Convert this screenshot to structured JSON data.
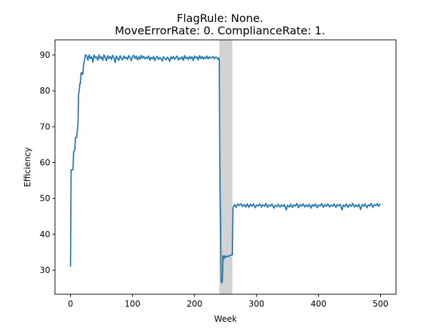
{
  "chart_data": {
    "type": "line",
    "title_lines": [
      "FlagRule: None.",
      "MoveErrorRate: 0. ComplianceRate: 1."
    ],
    "xlabel": "Week",
    "ylabel": "Efficiency",
    "xlim": [
      -25,
      525
    ],
    "ylim": [
      23.3,
      94.2
    ],
    "xticks": [
      0,
      100,
      200,
      300,
      400,
      500
    ],
    "yticks": [
      30,
      40,
      50,
      60,
      70,
      80,
      90
    ],
    "shaded_region": {
      "x_start": 240,
      "x_end": 261,
      "color": "#d3d3d3"
    },
    "line_color": "#1f77b4",
    "grid": false,
    "series": [
      {
        "points": [
          [
            0,
            31
          ],
          [
            1,
            58
          ],
          [
            3,
            58
          ],
          [
            4,
            58
          ],
          [
            5,
            63
          ],
          [
            7,
            63.5
          ],
          [
            8,
            67
          ],
          [
            10,
            67
          ],
          [
            11,
            69
          ],
          [
            12,
            70.5
          ],
          [
            13,
            79
          ],
          [
            14,
            80
          ],
          [
            15,
            82
          ],
          [
            16,
            82
          ],
          [
            17,
            85
          ],
          [
            18,
            84.5
          ],
          [
            19,
            85
          ],
          [
            20,
            84.7
          ],
          [
            21,
            87
          ],
          [
            22,
            88
          ],
          [
            24,
            90
          ],
          [
            26,
            89.8
          ],
          [
            28,
            88.5
          ],
          [
            30,
            90
          ],
          [
            32,
            89
          ],
          [
            34,
            89.5
          ],
          [
            36,
            88
          ],
          [
            38,
            90
          ],
          [
            40,
            89.2
          ],
          [
            42,
            89.5
          ],
          [
            44,
            88.5
          ],
          [
            46,
            90
          ],
          [
            48,
            89
          ],
          [
            50,
            89.5
          ],
          [
            52,
            88.5
          ],
          [
            54,
            90
          ],
          [
            56,
            89.3
          ],
          [
            58,
            88.4
          ],
          [
            60,
            89.8
          ],
          [
            62,
            89
          ],
          [
            64,
            89.6
          ],
          [
            66,
            88.7
          ],
          [
            68,
            89.9
          ],
          [
            70,
            89.2
          ],
          [
            72,
            87.9
          ],
          [
            74,
            89.7
          ],
          [
            76,
            89
          ],
          [
            78,
            88.5
          ],
          [
            80,
            89.8
          ],
          [
            82,
            89.1
          ],
          [
            84,
            88.6
          ],
          [
            86,
            89.7
          ],
          [
            88,
            89
          ],
          [
            90,
            89.4
          ],
          [
            92,
            88.7
          ],
          [
            94,
            89.8
          ],
          [
            96,
            89.3
          ],
          [
            98,
            88.4
          ],
          [
            100,
            89.6
          ],
          [
            102,
            89.9
          ],
          [
            104,
            89
          ],
          [
            106,
            89.7
          ],
          [
            108,
            88.6
          ],
          [
            110,
            89.5
          ],
          [
            112,
            88.8
          ],
          [
            114,
            89.9
          ],
          [
            116,
            89.1
          ],
          [
            118,
            89.6
          ],
          [
            120,
            88.9
          ],
          [
            122,
            89.4
          ],
          [
            124,
            89
          ],
          [
            126,
            89.7
          ],
          [
            128,
            88.5
          ],
          [
            130,
            89.3
          ],
          [
            132,
            88.9
          ],
          [
            134,
            89.6
          ],
          [
            136,
            88.4
          ],
          [
            138,
            89.2
          ],
          [
            140,
            89.6
          ],
          [
            142,
            88.7
          ],
          [
            144,
            89.3
          ],
          [
            146,
            89
          ],
          [
            148,
            88.3
          ],
          [
            150,
            89.5
          ],
          [
            152,
            89
          ],
          [
            154,
            88.6
          ],
          [
            156,
            89.4
          ],
          [
            158,
            89
          ],
          [
            160,
            88.2
          ],
          [
            162,
            89.5
          ],
          [
            164,
            88.9
          ],
          [
            166,
            89.6
          ],
          [
            168,
            88.8
          ],
          [
            170,
            89.3
          ],
          [
            172,
            89.7
          ],
          [
            174,
            88.6
          ],
          [
            176,
            89.2
          ],
          [
            178,
            88.9
          ],
          [
            180,
            89.5
          ],
          [
            182,
            88.5
          ],
          [
            184,
            89.8
          ],
          [
            186,
            89
          ],
          [
            188,
            89.4
          ],
          [
            190,
            88.7
          ],
          [
            192,
            89.6
          ],
          [
            194,
            89
          ],
          [
            196,
            89.5
          ],
          [
            198,
            88.4
          ],
          [
            200,
            89.7
          ],
          [
            202,
            89.1
          ],
          [
            204,
            89.5
          ],
          [
            206,
            88.6
          ],
          [
            208,
            89.8
          ],
          [
            210,
            89
          ],
          [
            212,
            89.6
          ],
          [
            214,
            88.8
          ],
          [
            216,
            89.4
          ],
          [
            218,
            89
          ],
          [
            220,
            89.7
          ],
          [
            222,
            88.9
          ],
          [
            224,
            89.5
          ],
          [
            226,
            89.1
          ],
          [
            228,
            89.3
          ],
          [
            230,
            89.6
          ],
          [
            232,
            88.9
          ],
          [
            234,
            89.4
          ],
          [
            236,
            89.3
          ],
          [
            238,
            88.8
          ],
          [
            239,
            89.2
          ],
          [
            240,
            88.5
          ],
          [
            241,
            56
          ],
          [
            242,
            44
          ],
          [
            243,
            27
          ],
          [
            244,
            26.5
          ],
          [
            245,
            27
          ],
          [
            246,
            34
          ],
          [
            247,
            33
          ],
          [
            248,
            34
          ],
          [
            250,
            33.5
          ],
          [
            252,
            34
          ],
          [
            254,
            33.8
          ],
          [
            256,
            34
          ],
          [
            258,
            34.2
          ],
          [
            260,
            34.3
          ],
          [
            261,
            34.3
          ],
          [
            262,
            47
          ],
          [
            263,
            48
          ],
          [
            265,
            48.3
          ],
          [
            267,
            47.5
          ],
          [
            270,
            48.5
          ],
          [
            272,
            48
          ],
          [
            275,
            48.5
          ],
          [
            278,
            47.7
          ],
          [
            280,
            48.3
          ],
          [
            283,
            47.6
          ],
          [
            285,
            48.5
          ],
          [
            288,
            47.5
          ],
          [
            290,
            48.4
          ],
          [
            293,
            47.8
          ],
          [
            295,
            48.5
          ],
          [
            298,
            47.4
          ],
          [
            300,
            48.2
          ],
          [
            303,
            47.9
          ],
          [
            305,
            48.5
          ],
          [
            308,
            47.6
          ],
          [
            310,
            48.3
          ],
          [
            313,
            47.8
          ],
          [
            315,
            48.6
          ],
          [
            318,
            47.5
          ],
          [
            320,
            48.2
          ],
          [
            323,
            47.9
          ],
          [
            325,
            48.5
          ],
          [
            328,
            47.3
          ],
          [
            330,
            48.1
          ],
          [
            333,
            47.7
          ],
          [
            335,
            48.4
          ],
          [
            338,
            47.6
          ],
          [
            340,
            48.2
          ],
          [
            343,
            47.8
          ],
          [
            345,
            48.3
          ],
          [
            348,
            46.8
          ],
          [
            350,
            48.1
          ],
          [
            353,
            47.6
          ],
          [
            355,
            48.4
          ],
          [
            358,
            47.5
          ],
          [
            360,
            48.2
          ],
          [
            363,
            47.9
          ],
          [
            365,
            48.6
          ],
          [
            368,
            47.4
          ],
          [
            370,
            48.3
          ],
          [
            373,
            47.8
          ],
          [
            375,
            48.5
          ],
          [
            378,
            47.6
          ],
          [
            380,
            48.2
          ],
          [
            383,
            47.7
          ],
          [
            385,
            48.4
          ],
          [
            388,
            47.3
          ],
          [
            390,
            48.3
          ],
          [
            393,
            47.8
          ],
          [
            395,
            48.5
          ],
          [
            398,
            47.4
          ],
          [
            400,
            48.2
          ],
          [
            403,
            47.9
          ],
          [
            405,
            48.6
          ],
          [
            408,
            47.5
          ],
          [
            410,
            48.3
          ],
          [
            413,
            47.8
          ],
          [
            415,
            48.5
          ],
          [
            418,
            47.6
          ],
          [
            420,
            48.2
          ],
          [
            423,
            47.8
          ],
          [
            425,
            48.5
          ],
          [
            428,
            47.5
          ],
          [
            430,
            48.3
          ],
          [
            433,
            47.9
          ],
          [
            435,
            48.4
          ],
          [
            438,
            46.8
          ],
          [
            440,
            48.2
          ],
          [
            443,
            47.7
          ],
          [
            445,
            48.5
          ],
          [
            448,
            47.5
          ],
          [
            450,
            48.3
          ],
          [
            453,
            47.8
          ],
          [
            455,
            48.6
          ],
          [
            458,
            47.6
          ],
          [
            460,
            48.2
          ],
          [
            463,
            47.7
          ],
          [
            465,
            48.4
          ],
          [
            468,
            46.9
          ],
          [
            470,
            48.3
          ],
          [
            473,
            47.8
          ],
          [
            475,
            48.5
          ],
          [
            478,
            47.4
          ],
          [
            480,
            48.2
          ],
          [
            483,
            47.9
          ],
          [
            485,
            48.6
          ],
          [
            488,
            47.5
          ],
          [
            490,
            48.3
          ],
          [
            493,
            48
          ],
          [
            495,
            48.6
          ],
          [
            497,
            47.8
          ],
          [
            499,
            48.4
          ],
          [
            500,
            48.2
          ]
        ]
      }
    ]
  }
}
